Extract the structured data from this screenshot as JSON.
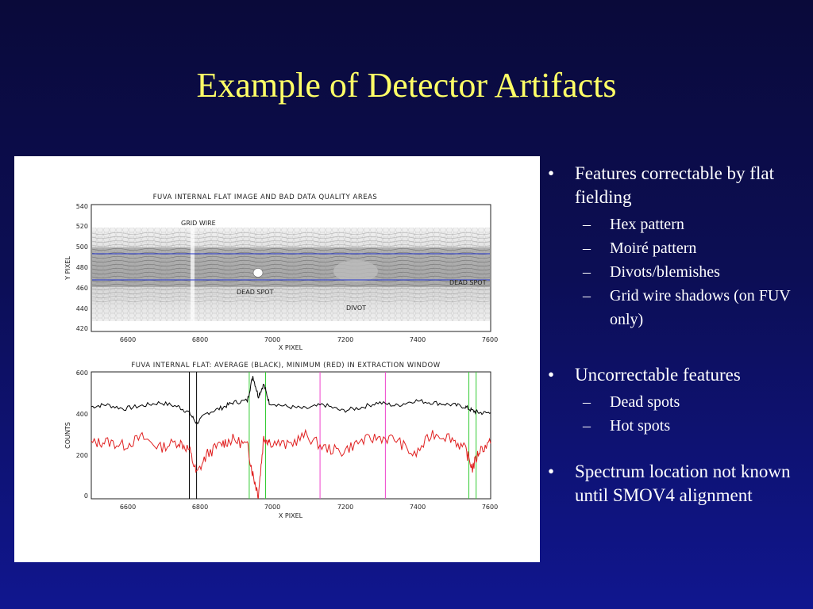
{
  "slide": {
    "title": "Example of Detector Artifacts"
  },
  "figure": {
    "top_plot": {
      "title": "FUVA INTERNAL FLAT IMAGE AND BAD DATA QUALITY AREAS",
      "ylabel": "Y PIXEL",
      "xlabel": "X PIXEL",
      "yticks": [
        "540",
        "520",
        "500",
        "480",
        "460",
        "440",
        "420"
      ],
      "xticks": [
        "6600",
        "6800",
        "7000",
        "7200",
        "7400",
        "7600"
      ],
      "annotations": {
        "grid_wire": "GRID WIRE",
        "dead_spot": "DEAD SPOT",
        "dead_spot_right": "DEAD SPOT",
        "divot": "DIVOT"
      }
    },
    "bottom_plot": {
      "title": "FUVA INTERNAL FLAT: AVERAGE (BLACK), MINIMUM (RED) IN EXTRACTION WINDOW",
      "ylabel": "COUNTS",
      "xlabel": "X PIXEL",
      "yticks": [
        "600",
        "400",
        "200",
        "0"
      ],
      "xticks": [
        "6600",
        "6800",
        "7000",
        "7200",
        "7400",
        "7600"
      ]
    },
    "colors": {
      "average_line": "#000000",
      "minimum_line": "#e02020",
      "green_markers": "#33cc33",
      "magenta_markers": "#ee44cc",
      "extraction_lines": "#2233cc"
    }
  },
  "chart_data": [
    {
      "type": "heatmap",
      "title": "FUVA INTERNAL FLAT IMAGE AND BAD DATA QUALITY AREAS",
      "xlabel": "X PIXEL",
      "ylabel": "Y PIXEL",
      "xlim": [
        6510,
        7610
      ],
      "ylim": [
        415,
        545
      ],
      "extraction_window_y": [
        468,
        494
      ],
      "annotations": [
        "GRID WIRE",
        "DEAD SPOT",
        "DEAD SPOT",
        "DIVOT"
      ]
    },
    {
      "type": "line",
      "title": "FUVA INTERNAL FLAT: AVERAGE (BLACK), MINIMUM (RED) IN EXTRACTION WINDOW",
      "xlabel": "X PIXEL",
      "ylabel": "COUNTS",
      "xlim": [
        6510,
        7610
      ],
      "ylim": [
        0,
        620
      ],
      "x": [
        6510,
        6550,
        6600,
        6650,
        6700,
        6750,
        6780,
        6800,
        6830,
        6870,
        6900,
        6940,
        6955,
        6970,
        6985,
        7000,
        7050,
        7100,
        7150,
        7200,
        7250,
        7300,
        7350,
        7400,
        7450,
        7500,
        7540,
        7560,
        7580,
        7610
      ],
      "series": [
        {
          "values": [
            450,
            460,
            440,
            455,
            470,
            450,
            420,
            370,
            420,
            445,
            470,
            480,
            600,
            500,
            560,
            470,
            450,
            440,
            460,
            430,
            445,
            470,
            455,
            480,
            470,
            460,
            450,
            430,
            420,
            420
          ]
        },
        {
          "values": [
            270,
            280,
            260,
            300,
            250,
            280,
            240,
            120,
            220,
            270,
            290,
            260,
            120,
            20,
            300,
            280,
            260,
            310,
            250,
            230,
            280,
            300,
            290,
            210,
            320,
            300,
            240,
            150,
            240,
            270
          ]
        }
      ],
      "vertical_markers": [
        {
          "x": 6780
        },
        {
          "x": 6800
        },
        {
          "x": 6945
        },
        {
          "x": 6990
        },
        {
          "x": 7140
        },
        {
          "x": 7320
        },
        {
          "x": 7550
        },
        {
          "x": 7570
        }
      ]
    }
  ],
  "bullets": [
    {
      "text": "Features correctable by flat fielding",
      "subs": [
        "Hex pattern",
        "Moiré pattern",
        "Divots/blemishes",
        "Grid wire shadows (on FUV only)"
      ]
    },
    {
      "text": "Uncorrectable features",
      "subs": [
        "Dead spots",
        "Hot spots"
      ]
    },
    {
      "text": "Spectrum location not known until SMOV4 alignment",
      "subs": []
    }
  ],
  "glyphs": {
    "bullet": "•",
    "dash": "–"
  }
}
